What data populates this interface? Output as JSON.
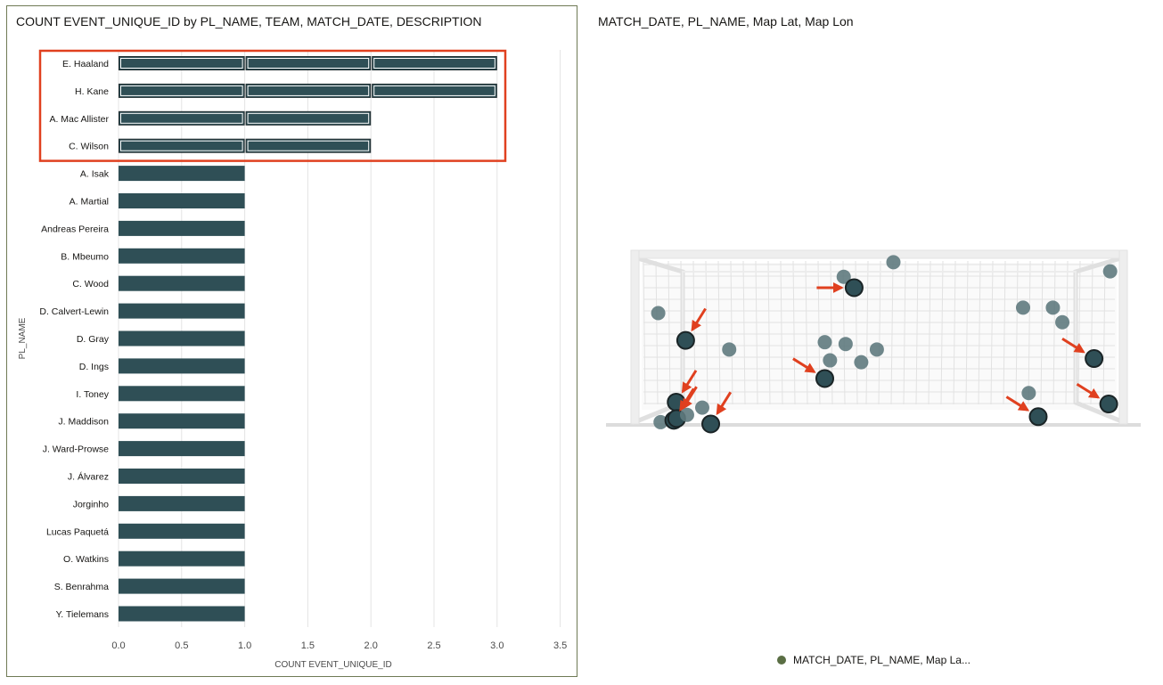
{
  "left_panel": {
    "title": "COUNT EVENT_UNIQUE_ID by PL_NAME, TEAM, MATCH_DATE, DESCRIPTION"
  },
  "right_panel": {
    "title": "MATCH_DATE, PL_NAME, Map Lat, Map Lon",
    "legend_label": "MATCH_DATE, PL_NAME, Map La..."
  },
  "chart_data": [
    {
      "type": "bar",
      "orientation": "horizontal",
      "title": "COUNT EVENT_UNIQUE_ID by PL_NAME, TEAM, MATCH_DATE, DESCRIPTION",
      "xlabel": "COUNT EVENT_UNIQUE_ID",
      "ylabel": "PL_NAME",
      "xlim": [
        0,
        3.5
      ],
      "xticks": [
        "0.0",
        "0.5",
        "1.0",
        "1.5",
        "2.0",
        "2.5",
        "3.0",
        "3.5"
      ],
      "grid": true,
      "bar_color": "#2f4f56",
      "highlight_color": "#e0401f",
      "categories": [
        "E. Haaland",
        "H. Kane",
        "A. Mac Allister",
        "C. Wilson",
        "A. Isak",
        "A. Martial",
        "Andreas Pereira",
        "B. Mbeumo",
        "C. Wood",
        "D. Calvert-Lewin",
        "D. Gray",
        "D. Ings",
        "I. Toney",
        "J. Maddison",
        "J. Ward-Prowse",
        "J. Álvarez",
        "Jorginho",
        "Lucas Paquetá",
        "O. Watkins",
        "S. Benrahma",
        "Y. Tielemans"
      ],
      "values": [
        3,
        3,
        2,
        2,
        1,
        1,
        1,
        1,
        1,
        1,
        1,
        1,
        1,
        1,
        1,
        1,
        1,
        1,
        1,
        1,
        1
      ],
      "selected": [
        "E. Haaland",
        "H. Kane",
        "A. Mac Allister",
        "C. Wilson"
      ]
    },
    {
      "type": "scatter",
      "title": "MATCH_DATE, PL_NAME, Map Lat, Map Lon",
      "background": "football goal",
      "legend": "bottom-center",
      "series": [
        {
          "name": "MATCH_DATE, PL_NAME, Map La...",
          "color": "#5f7a7e",
          "points": [
            {
              "x": 0.035,
              "y": 0.62,
              "selected": false
            },
            {
              "x": 0.093,
              "y": 0.47,
              "selected": true
            },
            {
              "x": 0.073,
              "y": 0.13,
              "selected": true
            },
            {
              "x": 0.04,
              "y": 0.02,
              "selected": false
            },
            {
              "x": 0.068,
              "y": 0.03,
              "selected": true
            },
            {
              "x": 0.074,
              "y": 0.04,
              "selected": true
            },
            {
              "x": 0.096,
              "y": 0.06,
              "selected": false
            },
            {
              "x": 0.128,
              "y": 0.1,
              "selected": false
            },
            {
              "x": 0.146,
              "y": 0.01,
              "selected": true
            },
            {
              "x": 0.185,
              "y": 0.42,
              "selected": false
            },
            {
              "x": 0.427,
              "y": 0.82,
              "selected": false
            },
            {
              "x": 0.449,
              "y": 0.76,
              "selected": true
            },
            {
              "x": 0.532,
              "y": 0.9,
              "selected": false
            },
            {
              "x": 0.387,
              "y": 0.46,
              "selected": false
            },
            {
              "x": 0.398,
              "y": 0.36,
              "selected": false
            },
            {
              "x": 0.387,
              "y": 0.26,
              "selected": true
            },
            {
              "x": 0.431,
              "y": 0.45,
              "selected": false
            },
            {
              "x": 0.464,
              "y": 0.35,
              "selected": false
            },
            {
              "x": 0.497,
              "y": 0.42,
              "selected": false
            },
            {
              "x": 0.806,
              "y": 0.65,
              "selected": false
            },
            {
              "x": 0.869,
              "y": 0.65,
              "selected": false
            },
            {
              "x": 0.889,
              "y": 0.57,
              "selected": false
            },
            {
              "x": 0.99,
              "y": 0.85,
              "selected": false
            },
            {
              "x": 0.818,
              "y": 0.18,
              "selected": false
            },
            {
              "x": 0.838,
              "y": 0.05,
              "selected": true
            },
            {
              "x": 0.956,
              "y": 0.37,
              "selected": true
            },
            {
              "x": 0.987,
              "y": 0.12,
              "selected": true
            }
          ]
        }
      ],
      "arrow_color": "#e0401f"
    }
  ]
}
